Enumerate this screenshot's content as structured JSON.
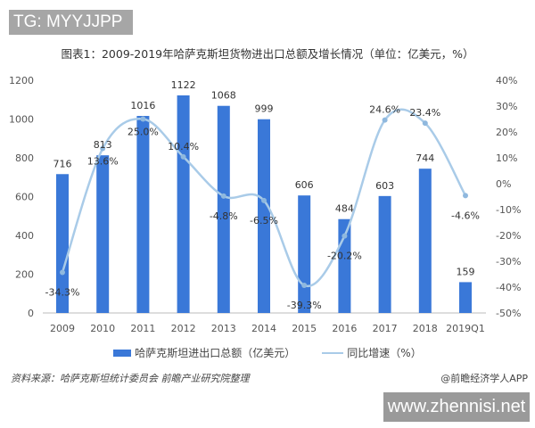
{
  "watermark_top": "TG: MYYJJPP",
  "watermark_bottom": "www.zhennisi.net",
  "source": "资料来源：哈萨克斯坦统计委员会 前瞻产业研究院整理",
  "credit": "@前瞻经济学人APP",
  "chart_data": {
    "type": "bar+line",
    "title": "图表1：2009-2019年哈萨克斯坦货物进出口总额及增长情况（单位：亿美元，%）",
    "categories": [
      "2009",
      "2010",
      "2011",
      "2012",
      "2013",
      "2014",
      "2015",
      "2016",
      "2017",
      "2018",
      "2019Q1"
    ],
    "series": [
      {
        "name": "哈萨克斯坦进出口总额（亿美元）",
        "type": "bar",
        "axis": "left",
        "color": "#3a78d8",
        "values": [
          716,
          813,
          1016,
          1122,
          1068,
          999,
          606,
          484,
          603,
          744,
          159
        ],
        "labels": [
          "716",
          "813",
          "1016",
          "1122",
          "1068",
          "999",
          "606",
          "484",
          "603",
          "744",
          "159"
        ]
      },
      {
        "name": "同比增速（%）",
        "type": "line",
        "axis": "right",
        "color": "#a9cbe8",
        "values": [
          -34.3,
          13.6,
          25.0,
          10.4,
          -4.8,
          -6.5,
          -39.3,
          -20.2,
          24.6,
          23.4,
          -4.6
        ],
        "labels": [
          "-34.3%",
          "13.6%",
          "25.0%",
          "10.4%",
          "-4.8%",
          "-6.5%",
          "-39.3%",
          "-20.2%",
          "24.6%",
          "23.4%",
          "-4.6%"
        ]
      }
    ],
    "left_axis": {
      "range": [
        0,
        1200
      ],
      "ticks": [
        "0",
        "200",
        "400",
        "600",
        "800",
        "1000",
        "1200"
      ]
    },
    "right_axis": {
      "range": [
        -50,
        40
      ],
      "ticks": [
        "-50%",
        "-40%",
        "-30%",
        "-20%",
        "-10%",
        "0%",
        "10%",
        "20%",
        "30%",
        "40%"
      ]
    },
    "grid": false,
    "legend": "bottom"
  }
}
